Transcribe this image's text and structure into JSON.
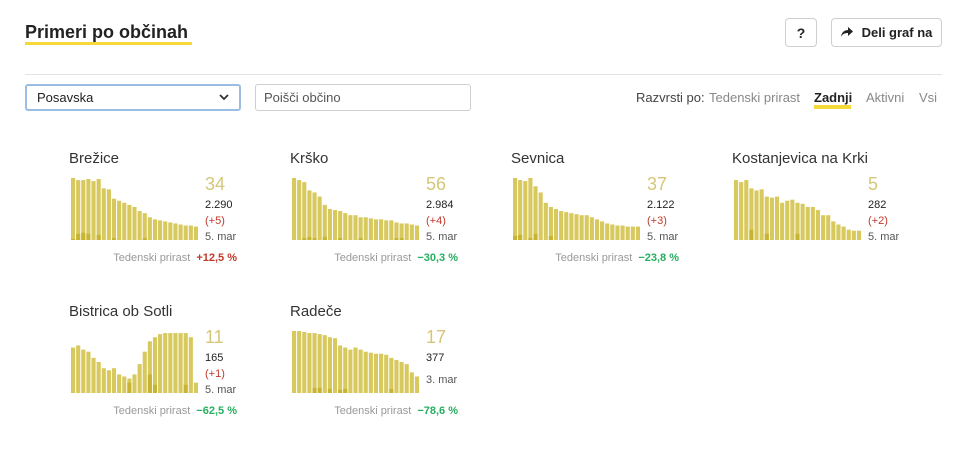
{
  "header": {
    "title": "Primeri po občinah",
    "help_label": "?",
    "share_label": "Deli graf na"
  },
  "filters": {
    "region_selected": "Posavska",
    "search_placeholder": "Poišči občino"
  },
  "sort": {
    "label": "Razvrsti po:",
    "options": [
      "Tedenski prirast",
      "Zadnji",
      "Aktivni",
      "Vsi"
    ],
    "active": "Zadnji"
  },
  "colors": {
    "accent": "#f5d83a",
    "bar": "#d8c95e",
    "bar_dark": "#c7b532",
    "positive": "#c0392b",
    "negative": "#27ae60"
  },
  "cards": [
    {
      "name": "Brežice",
      "active": "34",
      "total": "2.290",
      "delta": "(+5)",
      "date": "5. mar",
      "growth_label": "Tedenski prirast",
      "growth": "+12,5 %",
      "growth_color": "#c0392b",
      "bars": [
        60,
        58,
        58,
        59,
        57,
        59,
        50,
        49,
        40,
        38,
        36,
        34,
        32,
        28,
        26,
        22,
        20,
        19,
        18,
        17,
        16,
        15,
        14,
        14,
        13
      ],
      "dark": [
        1,
        6,
        7,
        6,
        0,
        5,
        0,
        0,
        2,
        0,
        0,
        0,
        0,
        0,
        2,
        0,
        0,
        0,
        0,
        0,
        0,
        0,
        0,
        0,
        0
      ]
    },
    {
      "name": "Krško",
      "active": "56",
      "total": "2.984",
      "delta": "(+4)",
      "date": "5. mar",
      "growth_label": "Tedenski prirast",
      "growth": "−30,3 %",
      "growth_color": "#27ae60",
      "bars": [
        60,
        58,
        56,
        48,
        46,
        42,
        34,
        30,
        29,
        28,
        26,
        24,
        24,
        22,
        22,
        21,
        20,
        20,
        19,
        19,
        17,
        16,
        16,
        15,
        14
      ],
      "dark": [
        0,
        0,
        2,
        3,
        2,
        0,
        3,
        0,
        0,
        2,
        0,
        0,
        0,
        2,
        0,
        0,
        0,
        0,
        0,
        0,
        2,
        2,
        0,
        0,
        0
      ]
    },
    {
      "name": "Sevnica",
      "active": "37",
      "total": "2.122",
      "delta": "(+3)",
      "date": "5. mar",
      "growth_label": "Tedenski prirast",
      "growth": "−23,8 %",
      "growth_color": "#27ae60",
      "bars": [
        60,
        58,
        57,
        60,
        52,
        46,
        36,
        32,
        30,
        28,
        27,
        26,
        25,
        24,
        24,
        22,
        20,
        18,
        16,
        15,
        14,
        14,
        13,
        13,
        13
      ],
      "dark": [
        4,
        5,
        0,
        2,
        6,
        0,
        0,
        4,
        0,
        0,
        0,
        0,
        0,
        0,
        0,
        0,
        0,
        0,
        0,
        0,
        0,
        0,
        0,
        0,
        0
      ]
    },
    {
      "name": "Kostanjevica na Krki",
      "active": "5",
      "total": "282",
      "delta": "(+2)",
      "date": "5. mar",
      "growth_label": "",
      "growth": "",
      "growth_color": "#27ae60",
      "bars": [
        58,
        56,
        58,
        50,
        48,
        49,
        42,
        41,
        42,
        36,
        38,
        39,
        36,
        35,
        32,
        32,
        29,
        24,
        24,
        18,
        15,
        13,
        10,
        9,
        9
      ],
      "dark": [
        0,
        0,
        0,
        10,
        0,
        0,
        6,
        0,
        0,
        0,
        0,
        0,
        6,
        0,
        0,
        0,
        0,
        0,
        0,
        0,
        0,
        0,
        0,
        0,
        0
      ]
    },
    {
      "name": "Bistrica ob Sotli",
      "active": "11",
      "total": "165",
      "delta": "(+1)",
      "date": "5. mar",
      "growth_label": "Tedenski prirast",
      "growth": "−62,5 %",
      "growth_color": "#27ae60",
      "bars": [
        44,
        46,
        42,
        40,
        34,
        30,
        24,
        22,
        24,
        18,
        16,
        14,
        18,
        28,
        40,
        50,
        54,
        57,
        58,
        58,
        58,
        58,
        58,
        54,
        10
      ],
      "dark": [
        0,
        0,
        0,
        0,
        0,
        0,
        0,
        0,
        0,
        0,
        0,
        10,
        0,
        0,
        0,
        18,
        8,
        0,
        0,
        0,
        0,
        0,
        8,
        0,
        0
      ]
    },
    {
      "name": "Radeče",
      "active": "17",
      "total": "377",
      "delta": "",
      "date": "3. mar",
      "growth_label": "Tedenski prirast",
      "growth": "−78,6 %",
      "growth_color": "#27ae60",
      "bars": [
        60,
        60,
        59,
        58,
        58,
        57,
        56,
        54,
        53,
        46,
        44,
        42,
        44,
        42,
        40,
        39,
        38,
        38,
        37,
        34,
        32,
        30,
        28,
        20,
        16
      ],
      "dark": [
        0,
        0,
        0,
        0,
        5,
        5,
        0,
        4,
        0,
        3,
        4,
        0,
        0,
        0,
        0,
        0,
        0,
        0,
        0,
        4,
        0,
        0,
        0,
        0,
        0
      ]
    }
  ]
}
